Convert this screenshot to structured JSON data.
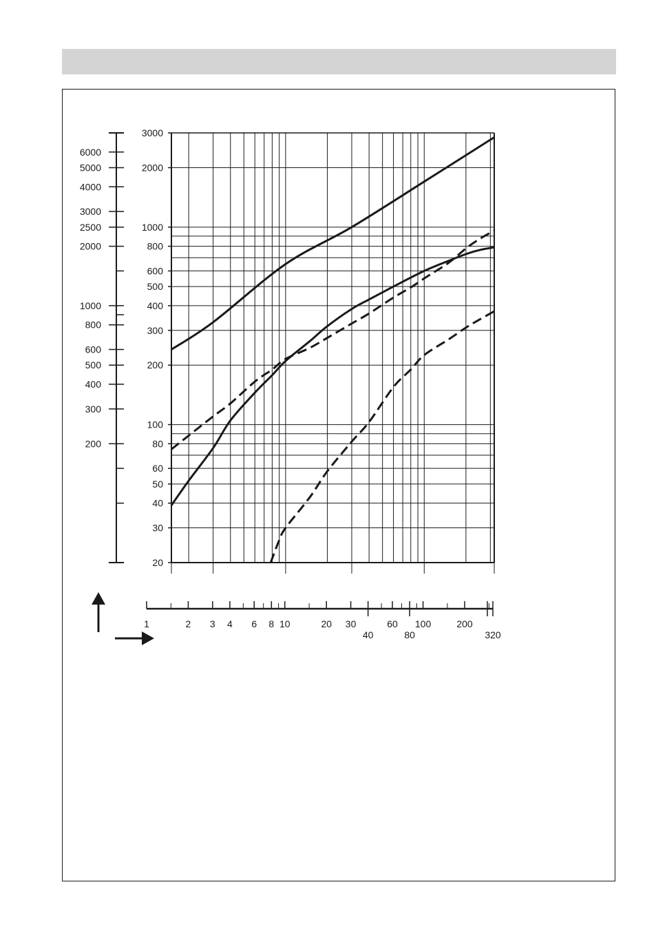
{
  "colors": {
    "ink": "#1a1a1a",
    "header_bar": "#d4d4d4",
    "background": "#ffffff"
  },
  "chart_data": {
    "type": "line",
    "title": "",
    "xlabel": "",
    "ylabel": "",
    "x_scale": "log",
    "y_scale": "log",
    "xlim": [
      1.5,
      320
    ],
    "ylim": [
      20,
      3000
    ],
    "grid": true,
    "legend": "none",
    "y_ticks_inner": [
      3000,
      2000,
      1000,
      800,
      600,
      500,
      400,
      300,
      200,
      100,
      80,
      60,
      50,
      40,
      30,
      20
    ],
    "y_ticks_outer": [
      6000,
      5000,
      4000,
      3000,
      2500,
      2000,
      1000,
      800,
      600,
      500,
      400,
      300,
      200
    ],
    "x_ticks": [
      1,
      2,
      3,
      4,
      6,
      8,
      10,
      20,
      30,
      40,
      60,
      80,
      100,
      200,
      320
    ],
    "series": [
      {
        "style": "solid",
        "x": [
          1.5,
          3,
          10,
          30,
          100,
          320
        ],
        "y": [
          240,
          330,
          650,
          1000,
          1700,
          2850
        ]
      },
      {
        "style": "solid",
        "x": [
          1.5,
          2,
          3,
          4,
          6,
          8,
          10,
          15,
          20,
          30,
          40,
          60,
          100,
          150,
          200,
          250,
          320
        ],
        "y": [
          39,
          52,
          76,
          105,
          145,
          178,
          210,
          265,
          315,
          385,
          430,
          500,
          600,
          675,
          730,
          765,
          790
        ]
      },
      {
        "style": "dashed",
        "x": [
          1.5,
          2,
          3,
          4,
          6,
          8,
          10,
          15,
          20,
          30,
          40,
          60,
          80,
          100,
          150,
          200,
          250,
          320
        ],
        "y": [
          75,
          88,
          110,
          128,
          165,
          190,
          215,
          245,
          275,
          325,
          365,
          440,
          495,
          550,
          660,
          780,
          870,
          960
        ]
      },
      {
        "style": "dashed",
        "x": [
          7.8,
          9,
          10,
          15,
          20,
          30,
          40,
          60,
          80,
          100,
          150,
          200,
          250,
          320
        ],
        "y": [
          20,
          26,
          30,
          43,
          58,
          82,
          103,
          155,
          190,
          225,
          270,
          310,
          340,
          375
        ]
      }
    ]
  }
}
